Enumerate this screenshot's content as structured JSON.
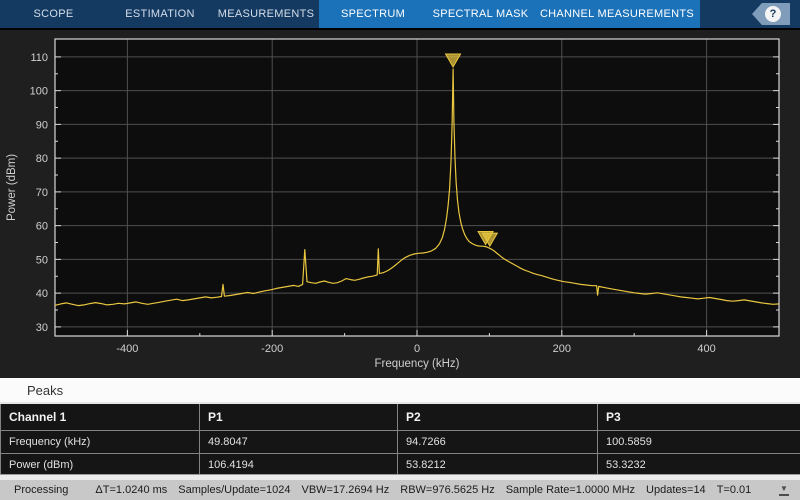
{
  "toolbar": {
    "tabs": [
      {
        "label": "SCOPE",
        "active": false
      },
      {
        "label": "ESTIMATION",
        "active": false
      },
      {
        "label": "MEASUREMENTS",
        "active": false
      },
      {
        "label": "SPECTRUM",
        "active": true
      },
      {
        "label": "SPECTRAL MASK",
        "active": true
      },
      {
        "label": "CHANNEL MEASUREMENTS",
        "active": true
      }
    ],
    "help_label": "?",
    "colors": {
      "bar_bg": "#143a62",
      "active_bg": "#1c72b8",
      "help_badge": "#7f9cba"
    }
  },
  "chart_data": {
    "type": "line",
    "title": "",
    "xlabel": "Frequency (kHz)",
    "ylabel": "Power (dBm)",
    "xlim": [
      -500,
      500
    ],
    "ylim": [
      27.3,
      115.3
    ],
    "xticks": [
      -400,
      -200,
      0,
      200,
      400
    ],
    "yticks": [
      30,
      40,
      50,
      60,
      70,
      80,
      90,
      100,
      110
    ],
    "xminor": [
      -300,
      -100,
      100,
      300
    ],
    "yminor": [
      35,
      45,
      55,
      65,
      75,
      85,
      95,
      105
    ],
    "grid": true,
    "legend": "none",
    "colors": {
      "trace": "#e9c63f",
      "grid": "#4f4f4f",
      "frame": "#d8d8d8",
      "plot_bg": "#0d0d0d",
      "panel_bg": "#1f1f1f",
      "tick_text": "#cfcfcf"
    },
    "series": [
      {
        "name": "Channel 1",
        "points": [
          [
            -500,
            36.4
          ],
          [
            -492,
            36.8
          ],
          [
            -484,
            37.1
          ],
          [
            -476,
            36.7
          ],
          [
            -468,
            36.3
          ],
          [
            -460,
            36.5
          ],
          [
            -452,
            36.9
          ],
          [
            -444,
            37.2
          ],
          [
            -436,
            36.9
          ],
          [
            -428,
            36.5
          ],
          [
            -420,
            36.7
          ],
          [
            -412,
            37
          ],
          [
            -404,
            36.8
          ],
          [
            -396,
            37.1
          ],
          [
            -388,
            37.4
          ],
          [
            -380,
            37
          ],
          [
            -372,
            36.7
          ],
          [
            -364,
            37
          ],
          [
            -356,
            37.3
          ],
          [
            -348,
            37.6
          ],
          [
            -340,
            37.9
          ],
          [
            -332,
            38.2
          ],
          [
            -324,
            37.8
          ],
          [
            -316,
            38
          ],
          [
            -308,
            38.3
          ],
          [
            -300,
            38.6
          ],
          [
            -292,
            38.9
          ],
          [
            -284,
            38.6
          ],
          [
            -276,
            38.8
          ],
          [
            -270,
            39
          ],
          [
            -268,
            42.6
          ],
          [
            -266,
            39.1
          ],
          [
            -258,
            39.3
          ],
          [
            -250,
            39.6
          ],
          [
            -242,
            39.9
          ],
          [
            -234,
            40.2
          ],
          [
            -226,
            39.9
          ],
          [
            -218,
            40.3
          ],
          [
            -210,
            40.7
          ],
          [
            -202,
            41
          ],
          [
            -194,
            41.4
          ],
          [
            -186,
            41.7
          ],
          [
            -178,
            42
          ],
          [
            -170,
            42.3
          ],
          [
            -164,
            42
          ],
          [
            -158,
            42.6
          ],
          [
            -155,
            52.9
          ],
          [
            -152,
            43.4
          ],
          [
            -146,
            43.1
          ],
          [
            -140,
            42.9
          ],
          [
            -134,
            43.3
          ],
          [
            -128,
            43.6
          ],
          [
            -122,
            43.2
          ],
          [
            -116,
            42.9
          ],
          [
            -110,
            43.1
          ],
          [
            -104,
            43.6
          ],
          [
            -98,
            44.3
          ],
          [
            -92,
            44
          ],
          [
            -86,
            43.8
          ],
          [
            -80,
            44.1
          ],
          [
            -74,
            44.5
          ],
          [
            -68,
            44.8
          ],
          [
            -62,
            45
          ],
          [
            -58,
            45.2
          ],
          [
            -55,
            45.4
          ],
          [
            -53.5,
            53.1
          ],
          [
            -52,
            45.8
          ],
          [
            -46,
            46.1
          ],
          [
            -40,
            46.7
          ],
          [
            -34,
            47.6
          ],
          [
            -28,
            48.6
          ],
          [
            -22,
            49.7
          ],
          [
            -16,
            50.6
          ],
          [
            -10,
            51.2
          ],
          [
            -4,
            51.6
          ],
          [
            2,
            51.8
          ],
          [
            8,
            51.9
          ],
          [
            14,
            52.1
          ],
          [
            20,
            52.5
          ],
          [
            26,
            53.3
          ],
          [
            31,
            54.6
          ],
          [
            35,
            56.4
          ],
          [
            38,
            58.8
          ],
          [
            41,
            62.5
          ],
          [
            43,
            66
          ],
          [
            45,
            71
          ],
          [
            47,
            79
          ],
          [
            48.5,
            90
          ],
          [
            49.8,
            106.4
          ],
          [
            51,
            91
          ],
          [
            52.5,
            80
          ],
          [
            54,
            73
          ],
          [
            56,
            67.5
          ],
          [
            58,
            63.8
          ],
          [
            60.5,
            61
          ],
          [
            63,
            59
          ],
          [
            66,
            57.3
          ],
          [
            69,
            56.1
          ],
          [
            72,
            55.3
          ],
          [
            76,
            54.7
          ],
          [
            80,
            54.3
          ],
          [
            84,
            54
          ],
          [
            88,
            53.9
          ],
          [
            91,
            53.9
          ],
          [
            94.7,
            53.8
          ],
          [
            97,
            53.6
          ],
          [
            100.6,
            53.3
          ],
          [
            103,
            53
          ],
          [
            106,
            52.6
          ],
          [
            110,
            51.9
          ],
          [
            114,
            51.2
          ],
          [
            118,
            50.5
          ],
          [
            123,
            49.8
          ],
          [
            128,
            49.2
          ],
          [
            133,
            48.6
          ],
          [
            138,
            48
          ],
          [
            143,
            47.4
          ],
          [
            148,
            46.9
          ],
          [
            154,
            46.4
          ],
          [
            160,
            45.9
          ],
          [
            166,
            45.5
          ],
          [
            172,
            45.2
          ],
          [
            178,
            44.8
          ],
          [
            184,
            44.4
          ],
          [
            190,
            44
          ],
          [
            196,
            43.7
          ],
          [
            203,
            43.4
          ],
          [
            210,
            43.2
          ],
          [
            218,
            42.9
          ],
          [
            226,
            42.6
          ],
          [
            234,
            42.4
          ],
          [
            242,
            42.2
          ],
          [
            248,
            42.2
          ],
          [
            249.5,
            39.4
          ],
          [
            251,
            42
          ],
          [
            260,
            41.6
          ],
          [
            268,
            41.3
          ],
          [
            276,
            41
          ],
          [
            284,
            40.7
          ],
          [
            292,
            40.4
          ],
          [
            300,
            40.1
          ],
          [
            308,
            39.9
          ],
          [
            316,
            39.7
          ],
          [
            324,
            39.9
          ],
          [
            332,
            40.1
          ],
          [
            340,
            39.8
          ],
          [
            348,
            39.5
          ],
          [
            356,
            39.2
          ],
          [
            364,
            38.9
          ],
          [
            372,
            38.7
          ],
          [
            380,
            38.5
          ],
          [
            388,
            38.3
          ],
          [
            396,
            38.5
          ],
          [
            404,
            38.7
          ],
          [
            412,
            38.4
          ],
          [
            420,
            38.1
          ],
          [
            428,
            37.8
          ],
          [
            436,
            37.6
          ],
          [
            444,
            37.8
          ],
          [
            452,
            38
          ],
          [
            460,
            37.7
          ],
          [
            468,
            37.4
          ],
          [
            476,
            37.1
          ],
          [
            484,
            36.9
          ],
          [
            492,
            36.7
          ],
          [
            500,
            36.8
          ]
        ]
      }
    ],
    "markers": [
      {
        "label": "P1",
        "x": 49.8047,
        "y": 106.4194
      },
      {
        "label": "P2",
        "x": 94.7266,
        "y": 53.8212
      },
      {
        "label": "P3",
        "x": 100.5859,
        "y": 53.3232
      }
    ]
  },
  "peaks": {
    "title": "Peaks",
    "table": {
      "headers": [
        "Channel 1",
        "P1",
        "P2",
        "P3"
      ],
      "rows": [
        {
          "cells": [
            "Frequency (kHz)",
            "49.8047",
            "94.7266",
            "100.5859"
          ]
        },
        {
          "cells": [
            "Power (dBm)",
            "106.4194",
            "53.8212",
            "53.3232"
          ]
        }
      ]
    }
  },
  "status_bar": {
    "items": [
      "Processing",
      "ΔT=1.0240 ms",
      "Samples/Update=1024",
      "VBW=17.2694 Hz",
      "RBW=976.5625 Hz",
      "Sample Rate=1.0000 MHz",
      "Updates=14",
      "T=0.01"
    ],
    "collapse_icon": "▼"
  }
}
